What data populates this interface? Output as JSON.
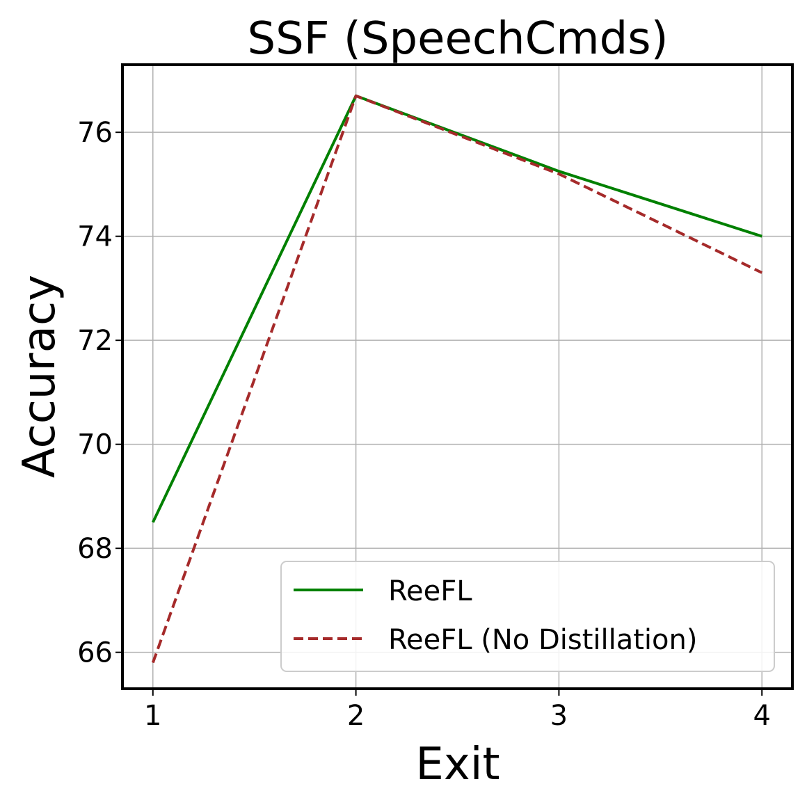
{
  "chart_data": {
    "type": "line",
    "title": "SSF (SpeechCmds)",
    "xlabel": "Exit",
    "ylabel": "Accuracy",
    "x": [
      1,
      2,
      3,
      4
    ],
    "xticks": [
      "1",
      "2",
      "3",
      "4"
    ],
    "yticks": [
      "66",
      "68",
      "70",
      "72",
      "74",
      "76"
    ],
    "xlim": [
      0.85,
      4.15
    ],
    "ylim": [
      65.3,
      77.3
    ],
    "grid": true,
    "legend_position": "lower-right",
    "series": [
      {
        "name": "ReeFL",
        "values": [
          68.5,
          76.7,
          75.25,
          74.0
        ],
        "color": "#008000",
        "style": "solid"
      },
      {
        "name": "ReeFL (No Distillation)",
        "values": [
          65.8,
          76.7,
          75.2,
          73.3
        ],
        "color": "#a52a2a",
        "style": "dashed"
      }
    ]
  }
}
